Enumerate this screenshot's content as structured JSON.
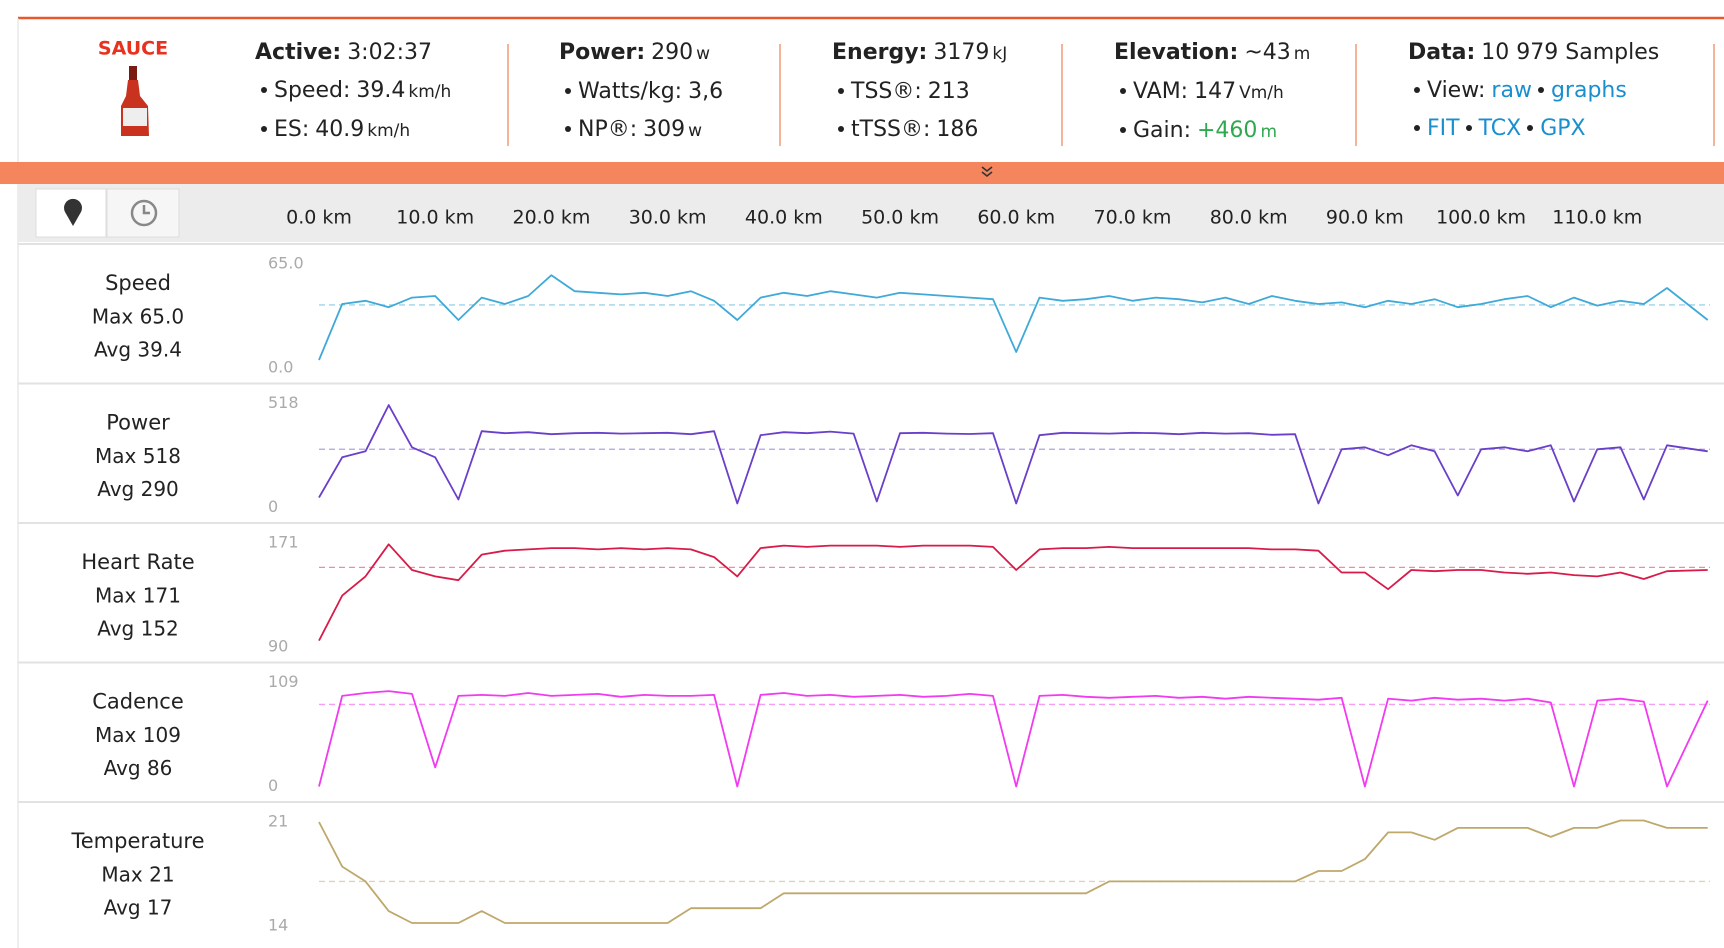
{
  "header": {
    "logo": "SAUCE",
    "stats": [
      {
        "title": {
          "label": "Active:",
          "value": "3:02:37"
        },
        "items": [
          {
            "label": "Speed:",
            "value": "39.4",
            "unit": "km/h"
          },
          {
            "label": "ES:",
            "value": "40.9",
            "unit": "km/h"
          }
        ]
      },
      {
        "title": {
          "label": "Power:",
          "value": "290",
          "unit": "w"
        },
        "items": [
          {
            "label": "Watts/kg:",
            "value": "3,6"
          },
          {
            "label": "NP®:",
            "value": "309",
            "unit": "w"
          }
        ]
      },
      {
        "title": {
          "label": "Energy:",
          "value": "3179",
          "unit": "kJ"
        },
        "items": [
          {
            "label": "TSS®:",
            "value": "213"
          },
          {
            "label": "tTSS®:",
            "value": "186"
          }
        ]
      },
      {
        "title": {
          "label": "Elevation:",
          "value": "~43",
          "unit": "m"
        },
        "items": [
          {
            "label": "VAM:",
            "value": "147",
            "unit": "Vm/h"
          },
          {
            "label": "Gain:",
            "value": "+460",
            "unit": "m",
            "color": "#2fa84f"
          }
        ]
      },
      {
        "title": {
          "label": "Data:",
          "value": "10 979 Samples"
        },
        "items": [
          {
            "label": "View:",
            "links": [
              "raw",
              "graphs"
            ]
          },
          {
            "links": [
              "FIT",
              "TCX",
              "GPX"
            ]
          }
        ]
      }
    ]
  },
  "distance_axis": {
    "xlim": [
      0,
      119.7
    ],
    "xticks": [
      {
        "value": 0,
        "label": "0.0 km"
      },
      {
        "value": 10,
        "label": "10.0 km"
      },
      {
        "value": 20,
        "label": "20.0 km"
      },
      {
        "value": 30,
        "label": "30.0 km"
      },
      {
        "value": 40,
        "label": "40.0 km"
      },
      {
        "value": 50,
        "label": "50.0 km"
      },
      {
        "value": 60,
        "label": "60.0 km"
      },
      {
        "value": 70,
        "label": "70.0 km"
      },
      {
        "value": 80,
        "label": "80.0 km"
      },
      {
        "value": 90,
        "label": "90.0 km"
      },
      {
        "value": 100,
        "label": "100.0 km"
      },
      {
        "value": 110,
        "label": "110.0 km"
      }
    ]
  },
  "chart_data": [
    {
      "type": "line",
      "title": "Speed",
      "stats": [
        "Max 65.0",
        "Avg 39.4"
      ],
      "mean": 39.4,
      "color": "#3fa9d8",
      "xlim": [
        0,
        119.7
      ],
      "ylim": [
        0,
        65
      ],
      "yticks": [
        {
          "value": 0,
          "label": "0.0"
        },
        {
          "value": 65,
          "label": "65.0"
        }
      ],
      "x": [
        0,
        2,
        4,
        6,
        8,
        10,
        12,
        14,
        16,
        18,
        20,
        22,
        24,
        26,
        28,
        30,
        32,
        34,
        36,
        38,
        40,
        42,
        44,
        46,
        48,
        50,
        52,
        54,
        56,
        58,
        60,
        62,
        64,
        66,
        68,
        70,
        72,
        74,
        76,
        78,
        80,
        82,
        84,
        86,
        88,
        90,
        92,
        94,
        96,
        98,
        100,
        102,
        104,
        106,
        108,
        110,
        112,
        114,
        116,
        119.5
      ],
      "values": [
        5,
        40,
        42,
        38,
        44,
        45,
        30,
        44,
        40,
        45,
        58,
        48,
        47,
        46,
        47,
        45,
        48,
        42,
        30,
        44,
        47,
        45,
        48,
        46,
        44,
        47,
        46,
        45,
        44,
        43,
        10,
        44,
        42,
        43,
        45,
        42,
        44,
        43,
        41,
        44,
        40,
        45,
        42,
        40,
        41,
        38,
        42,
        40,
        43,
        38,
        40,
        43,
        45,
        38,
        44,
        39,
        42,
        40,
        50,
        30
      ]
    },
    {
      "type": "line",
      "title": "Power",
      "stats": [
        "Max 518",
        "Avg 290"
      ],
      "mean": 290,
      "color": "#6a3fc9",
      "xlim": [
        0,
        119.7
      ],
      "ylim": [
        0,
        518
      ],
      "yticks": [
        0,
        518
      ],
      "x": [
        0,
        2,
        4,
        6,
        8,
        10,
        12,
        14,
        16,
        18,
        20,
        22,
        24,
        26,
        28,
        30,
        32,
        34,
        36,
        38,
        40,
        42,
        44,
        46,
        48,
        50,
        52,
        54,
        56,
        58,
        60,
        62,
        64,
        66,
        68,
        70,
        72,
        74,
        76,
        78,
        80,
        82,
        84,
        86,
        88,
        90,
        92,
        94,
        96,
        98,
        100,
        102,
        104,
        106,
        108,
        110,
        112,
        114,
        116,
        119.5
      ],
      "values": [
        50,
        250,
        280,
        510,
        300,
        250,
        40,
        380,
        370,
        375,
        365,
        370,
        372,
        368,
        370,
        372,
        365,
        380,
        20,
        360,
        375,
        370,
        378,
        368,
        30,
        370,
        372,
        368,
        366,
        370,
        20,
        360,
        372,
        370,
        368,
        372,
        370,
        365,
        372,
        368,
        370,
        362,
        365,
        20,
        290,
        300,
        260,
        310,
        280,
        60,
        290,
        300,
        280,
        310,
        30,
        290,
        300,
        40,
        310,
        280
      ]
    },
    {
      "type": "line",
      "title": "Heart Rate",
      "stats": [
        "Max 171",
        "Avg 152"
      ],
      "mean": 152,
      "color": "#d81b48",
      "xlim": [
        0,
        119.7
      ],
      "ylim": [
        90,
        171
      ],
      "yticks": [
        90,
        171
      ],
      "x": [
        0,
        2,
        4,
        6,
        8,
        10,
        12,
        14,
        16,
        18,
        20,
        22,
        24,
        26,
        28,
        30,
        32,
        34,
        36,
        38,
        40,
        42,
        44,
        46,
        48,
        50,
        52,
        54,
        56,
        58,
        60,
        62,
        64,
        66,
        68,
        70,
        72,
        74,
        76,
        78,
        80,
        82,
        84,
        86,
        88,
        90,
        92,
        94,
        96,
        98,
        100,
        102,
        104,
        106,
        108,
        110,
        112,
        114,
        116,
        119.5
      ],
      "values": [
        95,
        130,
        145,
        170,
        150,
        145,
        142,
        162,
        165,
        166,
        167,
        167,
        166,
        167,
        166,
        167,
        166,
        160,
        145,
        167,
        169,
        168,
        169,
        169,
        169,
        168,
        169,
        169,
        169,
        168,
        150,
        166,
        167,
        167,
        168,
        167,
        167,
        167,
        167,
        167,
        167,
        166,
        166,
        165,
        148,
        148,
        135,
        150,
        149,
        150,
        150,
        148,
        147,
        148,
        146,
        145,
        148,
        143,
        149,
        150
      ]
    },
    {
      "type": "line",
      "title": "Cadence",
      "stats": [
        "Max 109",
        "Avg 86"
      ],
      "mean": 86,
      "color": "#f13af1",
      "xlim": [
        0,
        119.7
      ],
      "ylim": [
        0,
        109
      ],
      "yticks": [
        0,
        109
      ],
      "x": [
        0,
        2,
        4,
        6,
        8,
        10,
        12,
        14,
        16,
        18,
        20,
        22,
        24,
        26,
        28,
        30,
        32,
        34,
        36,
        38,
        40,
        42,
        44,
        46,
        48,
        50,
        52,
        54,
        56,
        58,
        60,
        62,
        64,
        66,
        68,
        70,
        72,
        74,
        76,
        78,
        80,
        82,
        84,
        86,
        88,
        90,
        92,
        94,
        96,
        98,
        100,
        102,
        104,
        106,
        108,
        110,
        112,
        114,
        116,
        119.5
      ],
      "values": [
        0,
        95,
        98,
        100,
        97,
        20,
        95,
        96,
        95,
        98,
        95,
        96,
        97,
        94,
        96,
        95,
        95,
        96,
        0,
        96,
        98,
        95,
        96,
        94,
        95,
        96,
        94,
        95,
        97,
        95,
        0,
        95,
        96,
        94,
        93,
        94,
        95,
        93,
        94,
        92,
        94,
        93,
        92,
        91,
        93,
        0,
        92,
        90,
        93,
        91,
        92,
        90,
        92,
        88,
        0,
        90,
        92,
        89,
        0,
        90
      ]
    },
    {
      "type": "line",
      "title": "Temperature",
      "stats": [
        "Max 21",
        "Avg 17"
      ],
      "mean": 17,
      "color": "#bea86a",
      "xlim": [
        0,
        119.7
      ],
      "ylim": [
        14,
        21
      ],
      "yticks": [
        14,
        21
      ],
      "x": [
        0,
        2,
        4,
        6,
        8,
        10,
        12,
        14,
        16,
        18,
        20,
        22,
        24,
        26,
        28,
        30,
        32,
        34,
        36,
        38,
        40,
        42,
        44,
        46,
        48,
        50,
        52,
        54,
        56,
        58,
        60,
        62,
        64,
        66,
        68,
        70,
        72,
        74,
        76,
        78,
        80,
        82,
        84,
        86,
        88,
        90,
        92,
        94,
        96,
        98,
        100,
        102,
        104,
        106,
        108,
        110,
        112,
        114,
        116,
        119.5
      ],
      "values": [
        21,
        18,
        17,
        15,
        14.2,
        14.2,
        14.2,
        15,
        14.2,
        14.2,
        14.2,
        14.2,
        14.2,
        14.2,
        14.2,
        14.2,
        15.2,
        15.2,
        15.2,
        15.2,
        16.2,
        16.2,
        16.2,
        16.2,
        16.2,
        16.2,
        16.2,
        16.2,
        16.2,
        16.2,
        16.2,
        16.2,
        16.2,
        16.2,
        17,
        17,
        17,
        17,
        17,
        17,
        17,
        17,
        17,
        17.7,
        17.7,
        18.5,
        20.3,
        20.3,
        19.8,
        20.6,
        20.6,
        20.6,
        20.6,
        20,
        20.6,
        20.6,
        21.1,
        21.1,
        20.6,
        20.6
      ]
    }
  ]
}
